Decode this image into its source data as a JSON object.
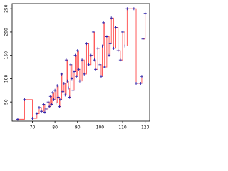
{
  "chart_data": {
    "type": "scatter",
    "step_line": true,
    "marker_color": "#2a1fa8",
    "line_color": "#ff4a4a",
    "x": [
      63.5,
      66.5,
      70,
      72,
      73,
      74,
      75,
      75.5,
      76,
      77,
      77.5,
      78,
      78.5,
      79,
      79.5,
      80,
      80.5,
      81,
      81.5,
      82,
      82.5,
      83,
      83.5,
      84,
      84.5,
      85,
      85.5,
      86,
      86.5,
      87,
      87.5,
      88,
      88.5,
      89,
      89.5,
      90,
      90.5,
      91,
      92,
      93,
      94,
      95,
      96,
      97,
      97.5,
      98,
      99,
      100,
      100.5,
      101,
      101.5,
      102,
      103,
      104,
      104.5,
      105,
      106,
      107,
      108,
      109,
      110,
      111,
      112,
      115,
      116,
      118,
      118.5,
      119,
      120
    ],
    "values": [
      13,
      55,
      15,
      25,
      38,
      30,
      45,
      28,
      35,
      50,
      40,
      62,
      45,
      70,
      55,
      75,
      48,
      85,
      60,
      40,
      55,
      110,
      72,
      90,
      65,
      140,
      95,
      80,
      60,
      130,
      100,
      75,
      115,
      150,
      105,
      160,
      120,
      95,
      140,
      110,
      175,
      130,
      150,
      200,
      140,
      120,
      165,
      130,
      105,
      170,
      220,
      125,
      190,
      150,
      175,
      230,
      165,
      210,
      160,
      140,
      200,
      170,
      250,
      250,
      90,
      90,
      105,
      185,
      240
    ],
    "xlim": [
      61,
      122
    ],
    "ylim": [
      9,
      261
    ],
    "xticks": [
      70,
      80,
      90,
      100,
      110,
      120
    ],
    "yticks": [
      50,
      100,
      150,
      200,
      250
    ]
  }
}
